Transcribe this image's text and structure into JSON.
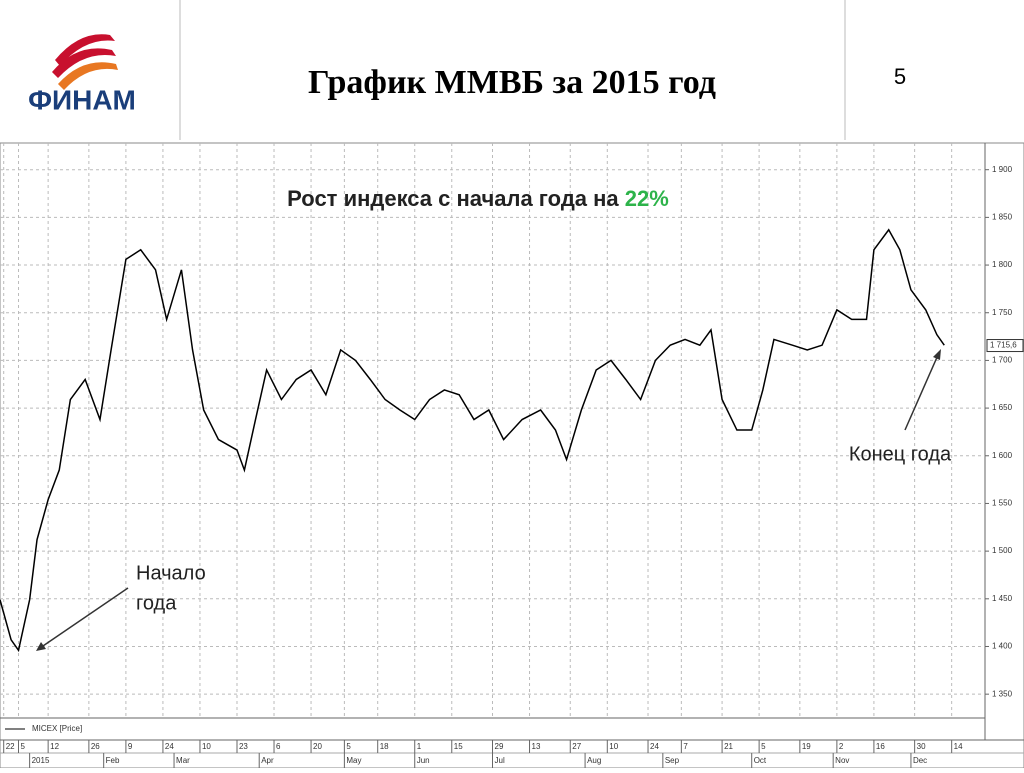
{
  "header": {
    "logo": "ФИНАМ",
    "title": "График ММВБ за 2015 год",
    "page_number": "5"
  },
  "chart_data": {
    "type": "line",
    "annotation": {
      "prefix": "Рост индекса с начала года на ",
      "highlight": "22%"
    },
    "start_label": [
      "Начало",
      "года"
    ],
    "end_label": "Конец года",
    "series": [
      {
        "name": "MICEX [Price]",
        "color": "#000000",
        "x": [
          0,
          3,
          5,
          8,
          10,
          13,
          16,
          19,
          23,
          27,
          30,
          34,
          38,
          42,
          45,
          49,
          52,
          55,
          59,
          64,
          66,
          69,
          72,
          76,
          80,
          84,
          88,
          92,
          96,
          100,
          104,
          108,
          112,
          116,
          120,
          124,
          128,
          132,
          136,
          141,
          146,
          150,
          153,
          157,
          161,
          165,
          169,
          173,
          177,
          181,
          185,
          189,
          192,
          195,
          199,
          203,
          206,
          209,
          214,
          218,
          222,
          226,
          230,
          234,
          236,
          240,
          243,
          246,
          250,
          253,
          255
        ],
        "values": [
          1449,
          1407,
          1396,
          1449,
          1512,
          1554,
          1585,
          1659,
          1680,
          1638,
          1711,
          1806,
          1816,
          1795,
          1743,
          1795,
          1711,
          1648,
          1617,
          1606,
          1585,
          1638,
          1690,
          1659,
          1680,
          1690,
          1664,
          1711,
          1700,
          1680,
          1659,
          1648,
          1638,
          1659,
          1669,
          1664,
          1638,
          1648,
          1617,
          1638,
          1648,
          1627,
          1596,
          1648,
          1690,
          1700,
          1680,
          1659,
          1700,
          1716,
          1722,
          1716,
          1732,
          1659,
          1627,
          1627,
          1669,
          1722,
          1716,
          1711,
          1716,
          1753,
          1743,
          1743,
          1816,
          1837,
          1816,
          1774,
          1753,
          1727,
          1716
        ]
      }
    ],
    "last_value": {
      "value": 1715.6,
      "label": "1 715,6"
    },
    "xlim": [
      0,
      266
    ],
    "ylim": [
      1325,
      1928
    ],
    "yticks": [
      {
        "value": 1350,
        "label": "1 350"
      },
      {
        "value": 1400,
        "label": "1 400"
      },
      {
        "value": 1450,
        "label": "1 450"
      },
      {
        "value": 1500,
        "label": "1 500"
      },
      {
        "value": 1550,
        "label": "1 550"
      },
      {
        "value": 1600,
        "label": "1 600"
      },
      {
        "value": 1650,
        "label": "1 650"
      },
      {
        "value": 1700,
        "label": "1 700"
      },
      {
        "value": 1750,
        "label": "1 750"
      },
      {
        "value": 1800,
        "label": "1 800"
      },
      {
        "value": 1850,
        "label": "1 850"
      },
      {
        "value": 1900,
        "label": "1 900"
      }
    ],
    "xticks": [
      {
        "value": 1,
        "label": "22"
      },
      {
        "value": 5,
        "label": "5"
      },
      {
        "value": 13,
        "label": "12"
      },
      {
        "value": 24,
        "label": "26"
      },
      {
        "value": 34,
        "label": "9"
      },
      {
        "value": 44,
        "label": "24"
      },
      {
        "value": 54,
        "label": "10"
      },
      {
        "value": 64,
        "label": "23"
      },
      {
        "value": 74,
        "label": "6"
      },
      {
        "value": 84,
        "label": "20"
      },
      {
        "value": 93,
        "label": "5"
      },
      {
        "value": 102,
        "label": "18"
      },
      {
        "value": 112,
        "label": "1"
      },
      {
        "value": 122,
        "label": "15"
      },
      {
        "value": 133,
        "label": "29"
      },
      {
        "value": 143,
        "label": "13"
      },
      {
        "value": 154,
        "label": "27"
      },
      {
        "value": 164,
        "label": "10"
      },
      {
        "value": 175,
        "label": "24"
      },
      {
        "value": 184,
        "label": "7"
      },
      {
        "value": 195,
        "label": "21"
      },
      {
        "value": 205,
        "label": "5"
      },
      {
        "value": 216,
        "label": "19"
      },
      {
        "value": 226,
        "label": "2"
      },
      {
        "value": 236,
        "label": "16"
      },
      {
        "value": 247,
        "label": "30"
      },
      {
        "value": 257,
        "label": "14"
      }
    ],
    "xticks2": [
      {
        "value": 8,
        "label": "2015"
      },
      {
        "value": 28,
        "label": "Feb"
      },
      {
        "value": 47,
        "label": "Mar"
      },
      {
        "value": 70,
        "label": "Apr"
      },
      {
        "value": 93,
        "label": "May"
      },
      {
        "value": 112,
        "label": "Jun"
      },
      {
        "value": 133,
        "label": "Jul"
      },
      {
        "value": 158,
        "label": "Aug"
      },
      {
        "value": 179,
        "label": "Sep"
      },
      {
        "value": 203,
        "label": "Oct"
      },
      {
        "value": 225,
        "label": "Nov"
      },
      {
        "value": 246,
        "label": "Dec"
      }
    ],
    "grid": true
  }
}
